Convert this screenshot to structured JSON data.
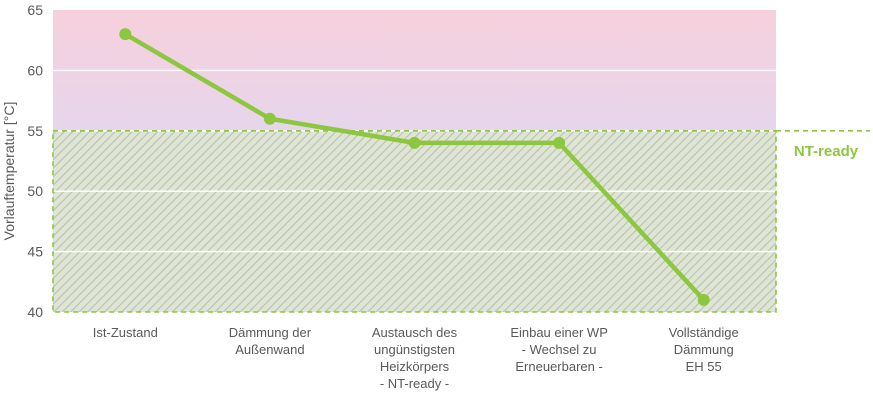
{
  "chart_data": {
    "type": "line",
    "ylabel": "Vorlauftemperatur [°C]",
    "xlabel": "",
    "ylim": [
      40,
      65
    ],
    "yticks": [
      40,
      45,
      50,
      55,
      60,
      65
    ],
    "categories": [
      [
        "Ist-Zustand"
      ],
      [
        "Dämmung der",
        "Außenwand"
      ],
      [
        "Austausch des",
        "ungünstigsten",
        "Heizkörpers",
        "- NT-ready -"
      ],
      [
        "Einbau einer WP",
        "- Wechsel zu",
        "Erneuerbaren -"
      ],
      [
        "Vollständige",
        "Dämmung",
        "EH 55"
      ]
    ],
    "series": [
      {
        "values": [
          63,
          56,
          54,
          54,
          41
        ]
      }
    ],
    "threshold": {
      "value": 55,
      "label": "NT-ready"
    },
    "grid": true,
    "colors": {
      "line": "#8dc63f",
      "threshold": "#8dc63f",
      "zone_top": "#f7d0dc",
      "zone_bottom": "#e6d6ec",
      "hatch_bg": "#dfe5d6",
      "hatch_line": "#b7c2a8",
      "gridline": "#ffffff",
      "text": "#595959"
    }
  }
}
